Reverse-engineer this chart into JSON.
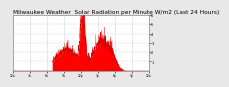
{
  "title": "Milwaukee Weather  Solar Radiation per Minute W/m2 (Last 24 Hours)",
  "title_fontsize": 4.2,
  "background_color": "#e8e8e8",
  "plot_bg_color": "#ffffff",
  "fill_color": "#ff0000",
  "line_color": "#dd0000",
  "ylim": [
    0,
    6
  ],
  "yticks": [
    1,
    2,
    3,
    4,
    5,
    6
  ],
  "grid_color": "#999999",
  "num_points": 1440,
  "xlim": [
    0,
    24
  ],
  "xtick_hours": [
    0,
    3,
    6,
    9,
    12,
    15,
    18,
    21,
    24
  ]
}
